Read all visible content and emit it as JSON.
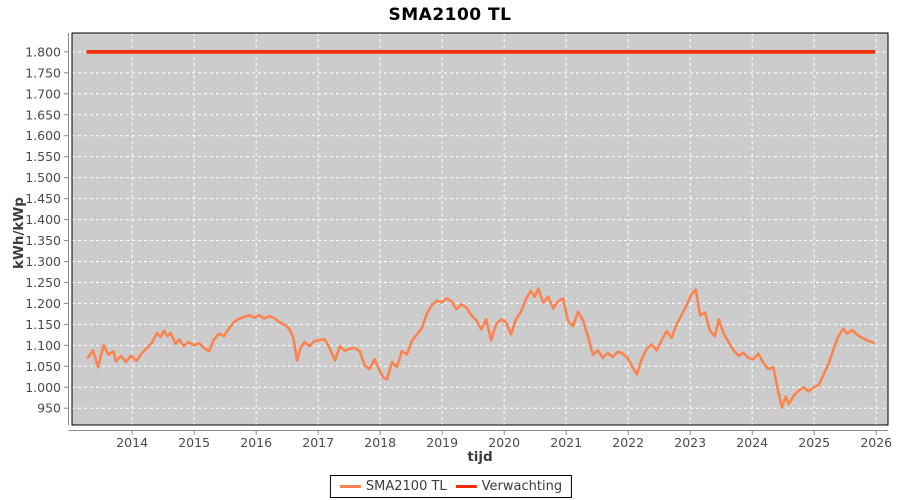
{
  "chart_data": {
    "type": "line",
    "title": "SMA2100 TL",
    "xlabel": "tijd",
    "ylabel": "kWh/kWp",
    "grid": true,
    "legend_position": "bottom-center",
    "plot_bg_color": "#CCCCCC",
    "grid_color": "#FFFFFF",
    "axis_line_color": "#8A8A8A",
    "plot_border_color": "#000000",
    "xlim": [
      2013.03,
      2026.19
    ],
    "ylim": [
      910,
      1845
    ],
    "x_ticks": [
      2014,
      2015,
      2016,
      2017,
      2018,
      2019,
      2020,
      2021,
      2022,
      2023,
      2024,
      2025,
      2026
    ],
    "y_ticks": [
      {
        "value": 950,
        "label": "950"
      },
      {
        "value": 1000,
        "label": "1.000"
      },
      {
        "value": 1050,
        "label": "1.050"
      },
      {
        "value": 1100,
        "label": "1.100"
      },
      {
        "value": 1150,
        "label": "1.150"
      },
      {
        "value": 1200,
        "label": "1.200"
      },
      {
        "value": 1250,
        "label": "1.250"
      },
      {
        "value": 1300,
        "label": "1.300"
      },
      {
        "value": 1350,
        "label": "1.350"
      },
      {
        "value": 1400,
        "label": "1.400"
      },
      {
        "value": 1450,
        "label": "1.450"
      },
      {
        "value": 1500,
        "label": "1.500"
      },
      {
        "value": 1550,
        "label": "1.550"
      },
      {
        "value": 1600,
        "label": "1.600"
      },
      {
        "value": 1650,
        "label": "1.650"
      },
      {
        "value": 1700,
        "label": "1.700"
      },
      {
        "value": 1750,
        "label": "1.750"
      },
      {
        "value": 1800,
        "label": "1.800"
      }
    ],
    "series": [
      {
        "name": "SMA2100 TL",
        "color": "#FA8350",
        "width": 2.6,
        "points": [
          [
            2013.29,
            1071
          ],
          [
            2013.37,
            1088
          ],
          [
            2013.45,
            1048
          ],
          [
            2013.54,
            1100
          ],
          [
            2013.62,
            1078
          ],
          [
            2013.7,
            1085
          ],
          [
            2013.74,
            1062
          ],
          [
            2013.82,
            1075
          ],
          [
            2013.9,
            1060
          ],
          [
            2013.98,
            1075
          ],
          [
            2014.07,
            1063
          ],
          [
            2014.15,
            1080
          ],
          [
            2014.24,
            1094
          ],
          [
            2014.32,
            1106
          ],
          [
            2014.4,
            1130
          ],
          [
            2014.46,
            1120
          ],
          [
            2014.51,
            1135
          ],
          [
            2014.57,
            1122
          ],
          [
            2014.62,
            1130
          ],
          [
            2014.7,
            1103
          ],
          [
            2014.76,
            1114
          ],
          [
            2014.83,
            1098
          ],
          [
            2014.91,
            1108
          ],
          [
            2015.0,
            1100
          ],
          [
            2015.08,
            1105
          ],
          [
            2015.16,
            1094
          ],
          [
            2015.24,
            1086
          ],
          [
            2015.32,
            1114
          ],
          [
            2015.4,
            1128
          ],
          [
            2015.48,
            1122
          ],
          [
            2015.56,
            1140
          ],
          [
            2015.64,
            1155
          ],
          [
            2015.72,
            1163
          ],
          [
            2015.81,
            1168
          ],
          [
            2015.89,
            1172
          ],
          [
            2015.97,
            1166
          ],
          [
            2016.05,
            1172
          ],
          [
            2016.13,
            1164
          ],
          [
            2016.21,
            1170
          ],
          [
            2016.29,
            1165
          ],
          [
            2016.37,
            1156
          ],
          [
            2016.45,
            1150
          ],
          [
            2016.53,
            1140
          ],
          [
            2016.6,
            1118
          ],
          [
            2016.66,
            1064
          ],
          [
            2016.72,
            1095
          ],
          [
            2016.78,
            1108
          ],
          [
            2016.86,
            1098
          ],
          [
            2016.94,
            1110
          ],
          [
            2017.02,
            1112
          ],
          [
            2017.1,
            1115
          ],
          [
            2017.18,
            1095
          ],
          [
            2017.27,
            1064
          ],
          [
            2017.35,
            1098
          ],
          [
            2017.43,
            1087
          ],
          [
            2017.51,
            1092
          ],
          [
            2017.59,
            1094
          ],
          [
            2017.67,
            1086
          ],
          [
            2017.75,
            1052
          ],
          [
            2017.83,
            1043
          ],
          [
            2017.91,
            1067
          ],
          [
            2017.99,
            1040
          ],
          [
            2018.05,
            1023
          ],
          [
            2018.11,
            1019
          ],
          [
            2018.19,
            1060
          ],
          [
            2018.27,
            1048
          ],
          [
            2018.35,
            1086
          ],
          [
            2018.43,
            1078
          ],
          [
            2018.51,
            1110
          ],
          [
            2018.59,
            1126
          ],
          [
            2018.67,
            1140
          ],
          [
            2018.75,
            1175
          ],
          [
            2018.83,
            1195
          ],
          [
            2018.91,
            1207
          ],
          [
            2018.99,
            1202
          ],
          [
            2019.07,
            1212
          ],
          [
            2019.15,
            1205
          ],
          [
            2019.23,
            1186
          ],
          [
            2019.31,
            1198
          ],
          [
            2019.39,
            1190
          ],
          [
            2019.47,
            1172
          ],
          [
            2019.55,
            1160
          ],
          [
            2019.63,
            1138
          ],
          [
            2019.71,
            1162
          ],
          [
            2019.79,
            1112
          ],
          [
            2019.87,
            1150
          ],
          [
            2019.95,
            1162
          ],
          [
            2020.03,
            1155
          ],
          [
            2020.11,
            1126
          ],
          [
            2020.19,
            1162
          ],
          [
            2020.27,
            1180
          ],
          [
            2020.35,
            1210
          ],
          [
            2020.43,
            1230
          ],
          [
            2020.49,
            1216
          ],
          [
            2020.55,
            1235
          ],
          [
            2020.63,
            1202
          ],
          [
            2020.71,
            1216
          ],
          [
            2020.79,
            1188
          ],
          [
            2020.87,
            1205
          ],
          [
            2020.95,
            1212
          ],
          [
            2021.03,
            1158
          ],
          [
            2021.11,
            1146
          ],
          [
            2021.19,
            1180
          ],
          [
            2021.27,
            1160
          ],
          [
            2021.35,
            1122
          ],
          [
            2021.43,
            1078
          ],
          [
            2021.51,
            1088
          ],
          [
            2021.59,
            1070
          ],
          [
            2021.67,
            1082
          ],
          [
            2021.75,
            1072
          ],
          [
            2021.83,
            1085
          ],
          [
            2021.91,
            1080
          ],
          [
            2021.99,
            1070
          ],
          [
            2022.07,
            1048
          ],
          [
            2022.14,
            1031
          ],
          [
            2022.22,
            1068
          ],
          [
            2022.3,
            1092
          ],
          [
            2022.38,
            1102
          ],
          [
            2022.46,
            1088
          ],
          [
            2022.54,
            1112
          ],
          [
            2022.62,
            1134
          ],
          [
            2022.7,
            1118
          ],
          [
            2022.78,
            1150
          ],
          [
            2022.86,
            1172
          ],
          [
            2022.94,
            1195
          ],
          [
            2023.02,
            1222
          ],
          [
            2023.09,
            1233
          ],
          [
            2023.16,
            1172
          ],
          [
            2023.24,
            1178
          ],
          [
            2023.32,
            1135
          ],
          [
            2023.4,
            1122
          ],
          [
            2023.46,
            1162
          ],
          [
            2023.54,
            1128
          ],
          [
            2023.62,
            1108
          ],
          [
            2023.7,
            1088
          ],
          [
            2023.78,
            1075
          ],
          [
            2023.86,
            1082
          ],
          [
            2023.94,
            1070
          ],
          [
            2024.02,
            1067
          ],
          [
            2024.1,
            1080
          ],
          [
            2024.18,
            1058
          ],
          [
            2024.26,
            1043
          ],
          [
            2024.34,
            1048
          ],
          [
            2024.42,
            990
          ],
          [
            2024.48,
            952
          ],
          [
            2024.54,
            978
          ],
          [
            2024.59,
            960
          ],
          [
            2024.67,
            980
          ],
          [
            2024.75,
            992
          ],
          [
            2024.83,
            1000
          ],
          [
            2024.91,
            990
          ],
          [
            2024.99,
            1000
          ],
          [
            2025.07,
            1005
          ],
          [
            2025.15,
            1030
          ],
          [
            2025.23,
            1055
          ],
          [
            2025.31,
            1090
          ],
          [
            2025.39,
            1122
          ],
          [
            2025.47,
            1140
          ],
          [
            2025.53,
            1128
          ],
          [
            2025.61,
            1136
          ],
          [
            2025.69,
            1126
          ],
          [
            2025.77,
            1118
          ],
          [
            2025.85,
            1112
          ],
          [
            2025.96,
            1106
          ]
        ]
      },
      {
        "name": "Verwachting",
        "color": "#F1300A",
        "width": 3.8,
        "points": [
          [
            2013.29,
            1800
          ],
          [
            2025.96,
            1800
          ]
        ]
      }
    ]
  }
}
